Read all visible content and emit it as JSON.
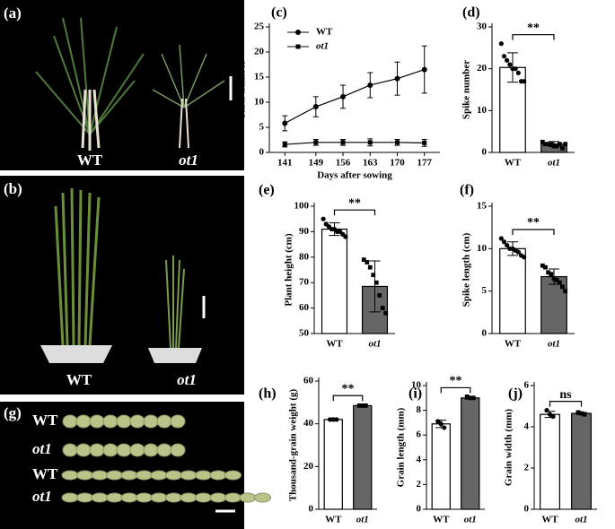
{
  "figure_panels": [
    {
      "label": "(a)",
      "captions": [
        "WT",
        "ot1"
      ]
    },
    {
      "label": "(b)",
      "captions": [
        "WT",
        "ot1"
      ]
    },
    {
      "label": "(g)",
      "row_labels": [
        "WT",
        "ot1",
        "WT",
        "ot1"
      ]
    }
  ],
  "chart_data": [
    {
      "type": "line",
      "panel": "(c)",
      "x_label": "Days after sowing",
      "y_label": "Tiller number",
      "x": [
        141,
        149,
        156,
        163,
        170,
        177
      ],
      "xlim": [
        137,
        181
      ],
      "xticks": [
        141,
        149,
        156,
        163,
        170,
        177
      ],
      "ylim": [
        0,
        25
      ],
      "yticks": [
        0,
        5,
        10,
        15,
        20,
        25
      ],
      "legend": "top-left",
      "series": [
        {
          "name": "WT",
          "color": "#000000",
          "values": [
            5.8,
            9.1,
            11.1,
            13.4,
            14.7,
            16.5
          ],
          "errors": [
            1.5,
            2.0,
            2.3,
            2.5,
            3.3,
            4.7
          ]
        },
        {
          "name": "ot1",
          "color": "#000000",
          "values": [
            1.6,
            2.0,
            2.0,
            2.0,
            2.0,
            1.9
          ],
          "errors": [
            0.5,
            0.6,
            0.6,
            0.7,
            0.6,
            0.7
          ]
        }
      ]
    },
    {
      "type": "bar",
      "panel": "(d)",
      "y_label": "Spike number",
      "categories": [
        "WT",
        "ot1"
      ],
      "values": [
        20.3,
        2.0
      ],
      "errors": [
        3.5,
        0.6
      ],
      "colors": [
        "#ffffff",
        "#666666"
      ],
      "points": [
        [
          26,
          23,
          22,
          21,
          20,
          20,
          19,
          17,
          17
        ],
        [
          2.5,
          2,
          2,
          2,
          1.5,
          1.5,
          2,
          1,
          2
        ]
      ],
      "ylim": [
        0,
        30
      ],
      "yticks": [
        0,
        10,
        20,
        30
      ],
      "significance": "**"
    },
    {
      "type": "bar",
      "panel": "(e)",
      "y_label": "Plant height (cm)",
      "categories": [
        "WT",
        "ot1"
      ],
      "values": [
        91,
        68.5
      ],
      "errors": [
        2.5,
        10
      ],
      "colors": [
        "#ffffff",
        "#666666"
      ],
      "points": [
        [
          95,
          93,
          92,
          91,
          91,
          90,
          90,
          89,
          88
        ],
        [
          79,
          78,
          76,
          73,
          70,
          65,
          60,
          58
        ]
      ],
      "ylim": [
        50,
        100
      ],
      "yticks": [
        50,
        60,
        70,
        80,
        90,
        100
      ],
      "significance": "**"
    },
    {
      "type": "bar",
      "panel": "(f)",
      "y_label": "Spike length (cm)",
      "categories": [
        "WT",
        "ot1"
      ],
      "values": [
        10,
        6.7
      ],
      "errors": [
        0.8,
        0.9
      ],
      "colors": [
        "#ffffff",
        "#666666"
      ],
      "points": [
        [
          11.2,
          10.8,
          10.4,
          10,
          10,
          9.8,
          9.6,
          9.2,
          9
        ],
        [
          8,
          7.8,
          7.2,
          7,
          6.5,
          6.3,
          6,
          5.5,
          5
        ]
      ],
      "ylim": [
        0,
        15
      ],
      "yticks": [
        0,
        5,
        10,
        15
      ],
      "significance": "**"
    },
    {
      "type": "bar",
      "panel": "(h)",
      "y_label": "Thousand-grain weight (g)",
      "categories": [
        "WT",
        "ot1"
      ],
      "values": [
        42,
        48.5
      ],
      "errors": [
        0.5,
        0.5
      ],
      "colors": [
        "#ffffff",
        "#666666"
      ],
      "points": [
        [
          42,
          42,
          42
        ],
        [
          48.5,
          48.5,
          48.5
        ]
      ],
      "ylim": [
        0,
        60
      ],
      "yticks": [
        0,
        20,
        40,
        60
      ],
      "significance": "**"
    },
    {
      "type": "bar",
      "panel": "(i)",
      "y_label": "Grain length (mm)",
      "categories": [
        "WT",
        "ot1"
      ],
      "values": [
        6.9,
        9.0
      ],
      "errors": [
        0.3,
        0.1
      ],
      "colors": [
        "#ffffff",
        "#666666"
      ],
      "points": [
        [
          7.1,
          6.9,
          6.6
        ],
        [
          9.1,
          9.0,
          9.0
        ]
      ],
      "ylim": [
        0,
        10
      ],
      "yticks": [
        0,
        2,
        4,
        6,
        8,
        10
      ],
      "significance": "**"
    },
    {
      "type": "bar",
      "panel": "(j)",
      "y_label": "Grain width (mm)",
      "categories": [
        "WT",
        "ot1"
      ],
      "values": [
        4.6,
        4.65
      ],
      "errors": [
        0.15,
        0.05
      ],
      "colors": [
        "#ffffff",
        "#666666"
      ],
      "points": [
        [
          4.8,
          4.6,
          4.5
        ],
        [
          4.7,
          4.65,
          4.6
        ]
      ],
      "ylim": [
        0,
        6
      ],
      "yticks": [
        0,
        2,
        4,
        6
      ],
      "significance": "ns"
    }
  ]
}
